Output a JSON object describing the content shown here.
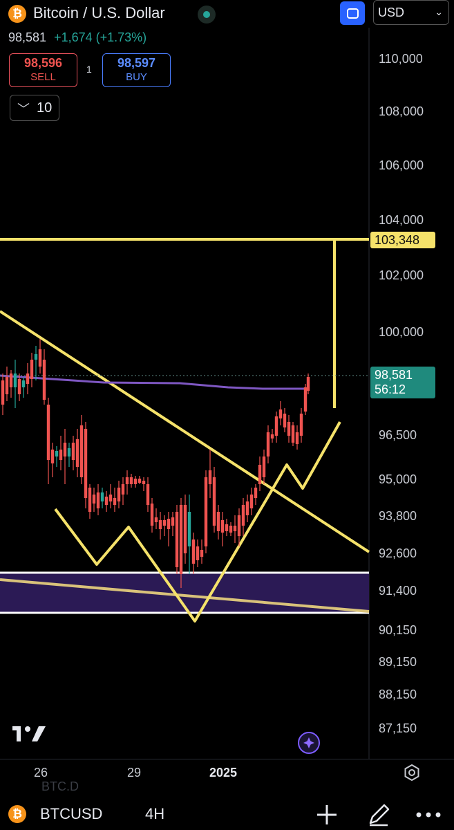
{
  "header": {
    "title": "Bitcoin / U.S. Dollar",
    "currency": "USD",
    "last_price": "98,581",
    "change": "+1,674 (+1.73%)",
    "icons": [
      "bitcoin-icon",
      "status-dot-icon",
      "layout-icon",
      "chevron-down-icon"
    ]
  },
  "trade": {
    "sell_price": "98,596",
    "sell_label": "SELL",
    "spread": "1",
    "buy_price": "98,597",
    "buy_label": "BUY",
    "quantity": "10"
  },
  "price_axis": [
    "110,000",
    "108,000",
    "106,000",
    "104,000",
    "102,000",
    "100,000",
    "96,500",
    "95,000",
    "93,800",
    "92,600",
    "91,400",
    "90,150",
    "89,150",
    "88,150",
    "87,150"
  ],
  "markers": {
    "horizontal_level": "103,348",
    "current_price": "98,581",
    "countdown": "56:12"
  },
  "time_axis": [
    "26",
    "29",
    "2025"
  ],
  "footer": {
    "symbol": "BTCUSD",
    "timeframe": "4H",
    "watermark": "BTC.D"
  },
  "colors": {
    "up": "#26a69a",
    "down": "#ef5350",
    "drawing": "#f5e26a",
    "moving_average": "#7e57c2",
    "zone": "#2b1a55"
  }
}
